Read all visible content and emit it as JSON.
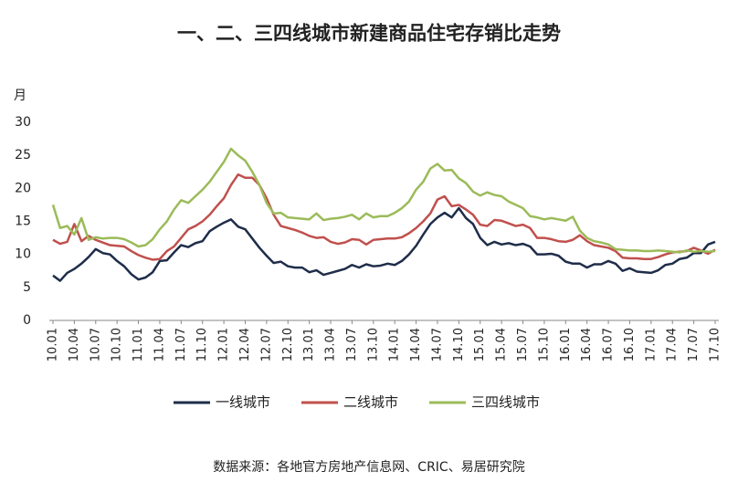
{
  "chart_data": {
    "type": "line",
    "title": "一、二、三四线城市新建商品住宅存销比走势",
    "y_label": "月",
    "source": "数据来源：各地官方房地产信息网、CRIC、易居研究院",
    "categories": [
      "10.01",
      null,
      null,
      "10.04",
      null,
      null,
      "10.07",
      null,
      null,
      "10.10",
      null,
      null,
      "11.01",
      null,
      null,
      "11.04",
      null,
      null,
      "11.07",
      null,
      null,
      "11.10",
      null,
      null,
      "12.01",
      null,
      null,
      "12.04",
      null,
      null,
      "12.07",
      null,
      null,
      "12.10",
      null,
      null,
      "13.01",
      null,
      null,
      "13.04",
      null,
      null,
      "13.07",
      null,
      null,
      "13.10",
      null,
      null,
      "14.01",
      null,
      null,
      "14.04",
      null,
      null,
      "14.07",
      null,
      null,
      "14.10",
      null,
      null,
      "15.01",
      null,
      null,
      "15.04",
      null,
      null,
      "15.07",
      null,
      null,
      "15.10",
      null,
      null,
      "16.01",
      null,
      null,
      "16.04",
      null,
      null,
      "16.07",
      null,
      null,
      "16.10",
      null,
      null,
      "17.01",
      null,
      null,
      "17.04",
      null,
      null,
      "17.07",
      null,
      null,
      "17.10"
    ],
    "series": [
      {
        "name": "一线城市",
        "color": "#1f2d4a",
        "values": [
          6.8,
          6.0,
          7.2,
          7.8,
          8.6,
          9.6,
          10.8,
          10.2,
          10.0,
          9.0,
          8.2,
          7.0,
          6.2,
          6.5,
          7.3,
          9.0,
          9.1,
          10.3,
          11.4,
          11.1,
          11.7,
          12.0,
          13.5,
          14.2,
          14.8,
          15.3,
          14.2,
          13.8,
          12.4,
          11.0,
          9.8,
          8.7,
          8.9,
          8.2,
          8.0,
          8.0,
          7.3,
          7.6,
          6.9,
          7.2,
          7.5,
          7.8,
          8.4,
          8.0,
          8.5,
          8.2,
          8.3,
          8.6,
          8.4,
          9.0,
          10.0,
          11.3,
          13.0,
          14.6,
          15.6,
          16.3,
          15.6,
          17.0,
          15.5,
          14.6,
          12.5,
          11.4,
          11.9,
          11.5,
          11.7,
          11.4,
          11.6,
          11.2,
          10.0,
          10.0,
          10.1,
          9.8,
          8.9,
          8.6,
          8.6,
          8.0,
          8.5,
          8.5,
          9.0,
          8.6,
          7.5,
          7.9,
          7.4,
          7.3,
          7.2,
          7.6,
          8.4,
          8.6,
          9.3,
          9.5,
          10.2,
          10.2,
          11.5,
          11.9
        ]
      },
      {
        "name": "二线城市",
        "color": "#c0504d",
        "values": [
          12.2,
          11.6,
          11.9,
          14.6,
          12.0,
          12.8,
          12.2,
          11.8,
          11.4,
          11.3,
          11.2,
          10.5,
          9.9,
          9.5,
          9.2,
          9.3,
          10.5,
          11.2,
          12.5,
          13.8,
          14.3,
          15.0,
          16.0,
          17.3,
          18.5,
          20.5,
          22.1,
          21.6,
          21.6,
          20.5,
          18.5,
          16.0,
          14.3,
          14.0,
          13.7,
          13.3,
          12.8,
          12.5,
          12.6,
          11.9,
          11.6,
          11.8,
          12.3,
          12.2,
          11.5,
          12.2,
          12.3,
          12.4,
          12.4,
          12.6,
          13.2,
          14.0,
          15.0,
          16.2,
          18.3,
          18.8,
          17.3,
          17.5,
          16.8,
          16.0,
          14.5,
          14.3,
          15.2,
          15.1,
          14.7,
          14.3,
          14.5,
          14.0,
          12.5,
          12.5,
          12.3,
          12.0,
          11.9,
          12.2,
          12.9,
          12.0,
          11.4,
          11.2,
          11.0,
          10.5,
          9.5,
          9.4,
          9.4,
          9.3,
          9.3,
          9.6,
          10.0,
          10.3,
          10.4,
          10.5,
          11.0,
          10.6,
          10.1,
          10.7
        ]
      },
      {
        "name": "三四线城市",
        "color": "#9bbb59",
        "values": [
          17.5,
          14.0,
          14.3,
          13.0,
          15.5,
          12.2,
          12.6,
          12.4,
          12.5,
          12.5,
          12.3,
          11.8,
          11.2,
          11.4,
          12.3,
          13.8,
          15.0,
          16.8,
          18.2,
          17.8,
          18.8,
          19.8,
          21.0,
          22.5,
          24.0,
          26.0,
          25.0,
          24.2,
          22.5,
          20.5,
          17.8,
          16.2,
          16.3,
          15.6,
          15.5,
          15.4,
          15.3,
          16.2,
          15.2,
          15.4,
          15.5,
          15.7,
          16.0,
          15.3,
          16.2,
          15.6,
          15.8,
          15.8,
          16.3,
          17.0,
          18.0,
          19.8,
          21.0,
          23.0,
          23.7,
          22.7,
          22.8,
          21.5,
          20.8,
          19.5,
          18.9,
          19.4,
          19.0,
          18.8,
          18.0,
          17.5,
          17.0,
          15.8,
          15.6,
          15.3,
          15.5,
          15.3,
          15.1,
          15.7,
          13.6,
          12.5,
          12.0,
          11.8,
          11.5,
          10.8,
          10.7,
          10.6,
          10.6,
          10.5,
          10.5,
          10.6,
          10.5,
          10.4,
          10.3,
          10.6,
          10.4,
          10.5,
          10.4,
          10.5
        ]
      }
    ],
    "ylim": [
      0,
      30
    ],
    "yticks": [
      0,
      5,
      10,
      15,
      20,
      25,
      30
    ]
  }
}
